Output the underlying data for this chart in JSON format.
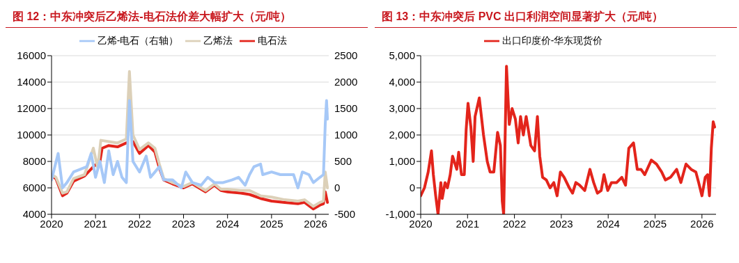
{
  "chart_data": [
    {
      "type": "line",
      "title": "图 12：中东冲突后乙烯法-电石法价差大幅扩大（元/吨）",
      "xlim": [
        2020,
        2026.3
      ],
      "xticks": [
        2020,
        2021,
        2022,
        2023,
        2024,
        2025,
        2026
      ],
      "ylim": [
        4000,
        16000
      ],
      "yticks": [
        4000,
        6000,
        8000,
        10000,
        12000,
        14000,
        16000
      ],
      "y2lim": [
        -500,
        2500
      ],
      "y2ticks": [
        -500,
        0,
        500,
        1000,
        1500,
        2000,
        2500
      ],
      "grid": "y",
      "legend": "top",
      "marker": "none",
      "line_style": "solid",
      "series": [
        {
          "name": "电石法",
          "color": "#e3241b",
          "x": [
            2020.0,
            2020.1,
            2020.25,
            2020.35,
            2020.5,
            2020.75,
            2020.95,
            2021.1,
            2021.15,
            2021.3,
            2021.5,
            2021.7,
            2021.77,
            2021.85,
            2022.0,
            2022.2,
            2022.35,
            2022.45,
            2022.55,
            2022.75,
            2023.0,
            2023.2,
            2023.5,
            2023.7,
            2023.85,
            2024.0,
            2024.3,
            2024.5,
            2024.75,
            2025.0,
            2025.3,
            2025.6,
            2025.75,
            2025.95,
            2026.1,
            2026.18,
            2026.22,
            2026.27
          ],
          "values": [
            6900,
            6700,
            5400,
            5600,
            6500,
            6900,
            7600,
            8000,
            9000,
            9200,
            9100,
            9400,
            null,
            9500,
            8600,
            9200,
            8700,
            7500,
            6600,
            6300,
            6000,
            6300,
            5700,
            6200,
            5800,
            5700,
            5600,
            5500,
            5200,
            5000,
            4900,
            4800,
            4900,
            4400,
            4700,
            4800,
            5700,
            4900
          ]
        },
        {
          "name": "乙烯法",
          "color": "#dcd0b8",
          "x": [
            2020.0,
            2020.1,
            2020.25,
            2020.35,
            2020.5,
            2020.75,
            2020.95,
            2021.05,
            2021.12,
            2021.3,
            2021.5,
            2021.7,
            2021.77,
            2021.85,
            2022.0,
            2022.2,
            2022.35,
            2022.45,
            2022.55,
            2022.75,
            2023.0,
            2023.2,
            2023.5,
            2023.7,
            2023.85,
            2024.0,
            2024.3,
            2024.5,
            2024.75,
            2025.0,
            2025.3,
            2025.6,
            2025.75,
            2025.95,
            2026.1,
            2026.18,
            2026.22,
            2026.27
          ],
          "values": [
            7000,
            6800,
            5600,
            5700,
            6700,
            7000,
            9000,
            7500,
            9600,
            9500,
            9400,
            9700,
            14800,
            10000,
            8900,
            9400,
            9000,
            7800,
            6700,
            6400,
            6100,
            6400,
            5800,
            6300,
            5900,
            5900,
            5800,
            5800,
            5400,
            5300,
            5100,
            5000,
            5100,
            4600,
            4900,
            5000,
            7200,
            6000
          ]
        },
        {
          "name": "乙烯-电石（右轴）",
          "color": "#a6c8f7",
          "axis": "y2",
          "x": [
            2020.0,
            2020.15,
            2020.25,
            2020.35,
            2020.5,
            2020.65,
            2020.8,
            2020.9,
            2021.0,
            2021.1,
            2021.2,
            2021.3,
            2021.4,
            2021.5,
            2021.6,
            2021.7,
            2021.77,
            2021.85,
            2022.0,
            2022.15,
            2022.25,
            2022.45,
            2022.55,
            2022.75,
            2022.95,
            2023.05,
            2023.2,
            2023.4,
            2023.55,
            2023.7,
            2023.9,
            2024.1,
            2024.25,
            2024.4,
            2024.5,
            2024.6,
            2024.75,
            2024.8,
            2025.0,
            2025.2,
            2025.5,
            2025.6,
            2025.7,
            2025.85,
            2025.95,
            2026.1,
            2026.18,
            2026.22,
            2026.25,
            2026.27
          ],
          "values": [
            150,
            650,
            0,
            100,
            300,
            350,
            400,
            650,
            200,
            500,
            100,
            700,
            250,
            500,
            200,
            100,
            1650,
            500,
            300,
            600,
            200,
            400,
            150,
            150,
            0,
            300,
            100,
            50,
            200,
            100,
            100,
            150,
            200,
            50,
            250,
            400,
            450,
            250,
            300,
            250,
            250,
            0,
            300,
            250,
            100,
            200,
            250,
            1200,
            1650,
            1300
          ]
        }
      ]
    },
    {
      "type": "line",
      "title": "图 13：中东冲突后 PVC 出口利润空间显著扩大（元/吨）",
      "xlim": [
        2020,
        2026.3
      ],
      "xticks": [
        2020,
        2021,
        2022,
        2023,
        2024,
        2025,
        2026
      ],
      "ylim": [
        -1000,
        5000
      ],
      "yticks": [
        {
          "value": -1000,
          "label": "-1,000"
        },
        0,
        {
          "value": 1000,
          "label": "1,000"
        },
        {
          "value": 2000,
          "label": "2,000"
        },
        {
          "value": 3000,
          "label": "3,000"
        },
        {
          "value": 4000,
          "label": "4,000"
        },
        {
          "value": 5000,
          "label": "5,000"
        }
      ],
      "grid": "y",
      "legend": "top",
      "marker": "none",
      "line_style": "solid",
      "series": [
        {
          "name": "出口印度价-华东现货价",
          "color": "#e3241b",
          "x": [
            2020.0,
            2020.08,
            2020.16,
            2020.23,
            2020.27,
            2020.32,
            2020.37,
            2020.43,
            2020.46,
            2020.52,
            2020.57,
            2020.63,
            2020.68,
            2020.77,
            2020.81,
            2020.87,
            2020.93,
            2020.97,
            2021.01,
            2021.07,
            2021.12,
            2021.16,
            2021.25,
            2021.34,
            2021.42,
            2021.48,
            2021.56,
            2021.64,
            2021.7,
            2021.74,
            2021.77,
            2021.83,
            2021.89,
            2021.95,
            2022.02,
            2022.08,
            2022.13,
            2022.19,
            2022.25,
            2022.35,
            2022.43,
            2022.49,
            2022.54,
            2022.6,
            2022.68,
            2022.76,
            2022.84,
            2022.91,
            2022.98,
            2023.06,
            2023.17,
            2023.24,
            2023.31,
            2023.39,
            2023.5,
            2023.61,
            2023.69,
            2023.77,
            2023.85,
            2023.91,
            2023.99,
            2024.07,
            2024.18,
            2024.29,
            2024.37,
            2024.44,
            2024.54,
            2024.62,
            2024.7,
            2024.78,
            2024.92,
            2025.03,
            2025.14,
            2025.22,
            2025.33,
            2025.46,
            2025.55,
            2025.66,
            2025.77,
            2025.87,
            2025.93,
            2026.0,
            2026.07,
            2026.12,
            2026.16,
            2026.2,
            2026.24,
            2026.27
          ],
          "values": [
            -300,
            0,
            600,
            1400,
            500,
            -300,
            -1000,
            200,
            -400,
            200,
            0,
            500,
            1200,
            700,
            1350,
            500,
            500,
            2200,
            3200,
            2300,
            1000,
            2700,
            3400,
            2000,
            1000,
            600,
            600,
            2100,
            1600,
            -500,
            -1000,
            4600,
            2400,
            3000,
            2600,
            1700,
            2700,
            2000,
            2700,
            1600,
            1400,
            2700,
            1200,
            400,
            300,
            0,
            200,
            -300,
            600,
            400,
            0,
            -200,
            200,
            100,
            -100,
            700,
            200,
            -200,
            -100,
            500,
            -100,
            200,
            200,
            400,
            100,
            1500,
            1700,
            700,
            700,
            500,
            1050,
            900,
            600,
            300,
            400,
            700,
            200,
            900,
            700,
            600,
            200,
            -300,
            400,
            500,
            -300,
            1500,
            2500,
            2300
          ]
        }
      ]
    }
  ]
}
